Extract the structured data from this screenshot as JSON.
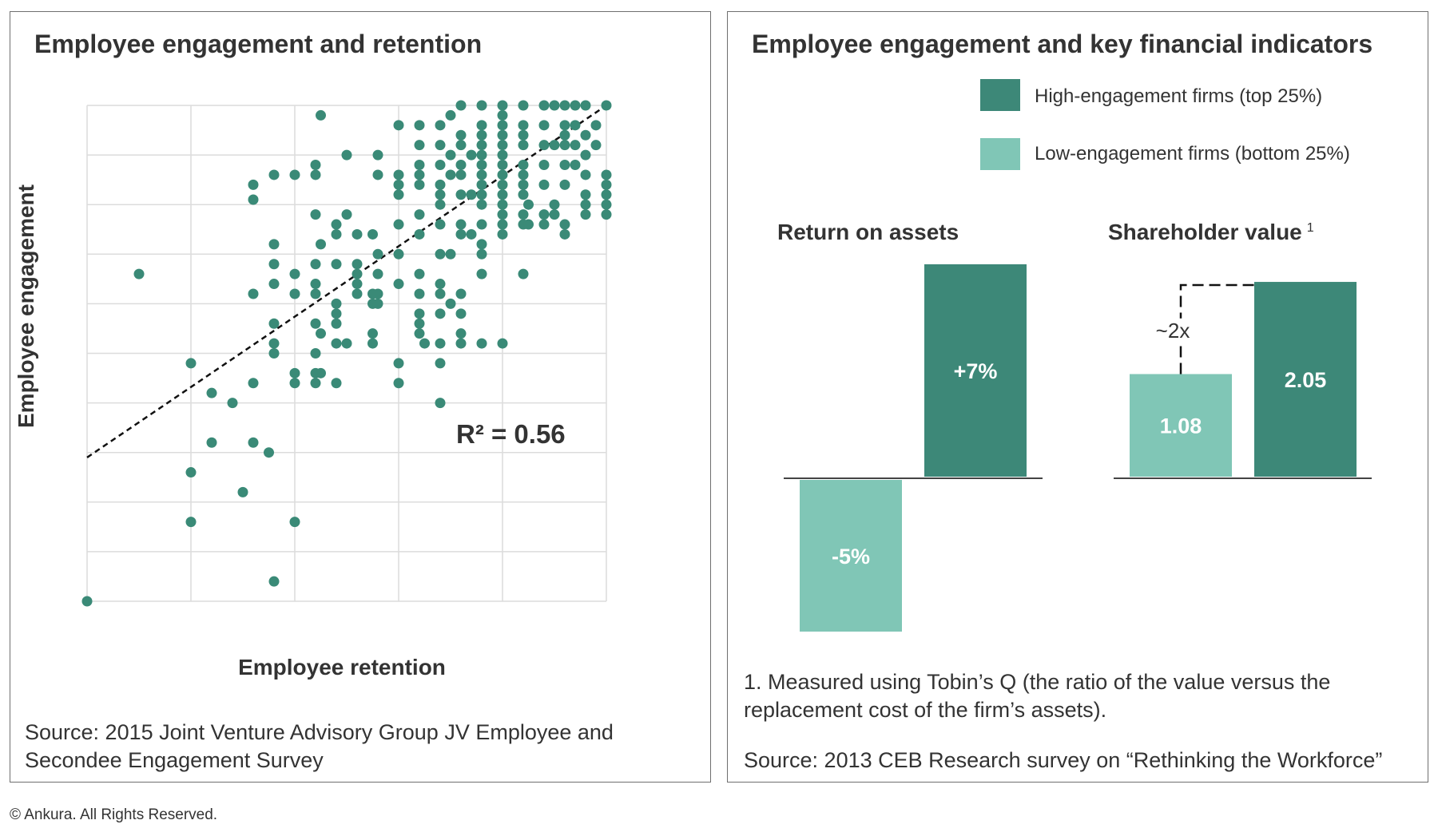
{
  "colors": {
    "high": "#3d8878",
    "low": "#80c6b6",
    "dot": "#3a8a77",
    "grid": "#dcdcdc",
    "text": "#333333"
  },
  "left": {
    "title": "Employee engagement and retention",
    "source": "Source: 2015 Joint Venture Advisory Group JV Employee and Secondee Engagement Survey",
    "r2_label": "R² = 0.56"
  },
  "right": {
    "title": "Employee engagement and key financial indicators",
    "legend_high": "High-engagement firms (top 25%)",
    "legend_low": "Low-engagement firms (bottom 25%)",
    "roa_title": "Return on assets",
    "sv_title": "Shareholder value",
    "sv_footnote_mark": "1",
    "multiplier_label": "~2x",
    "footnote": "1. Measured using Tobin’s Q (the ratio of the value versus the replacement cost of the firm’s assets).",
    "source": "Source: 2013 CEB Research survey on “Rethinking the Workforce”"
  },
  "copyright": "© Ankura. All Rights Reserved.",
  "chart_data": [
    {
      "type": "scatter",
      "title": "Employee engagement and retention",
      "xlabel": "Employee retention",
      "ylabel": "Employee engagement",
      "xlim": [
        0,
        5
      ],
      "ylim": [
        0,
        10
      ],
      "grid": true,
      "annotation": "R² = 0.56",
      "trendline": [
        [
          0,
          2.9
        ],
        [
          5,
          10
        ]
      ],
      "points": [
        [
          0,
          0
        ],
        [
          0.5,
          6.6
        ],
        [
          1,
          4.8
        ],
        [
          1,
          2.6
        ],
        [
          1,
          1.6
        ],
        [
          1.2,
          4.2
        ],
        [
          1.2,
          3.2
        ],
        [
          1.4,
          4
        ],
        [
          1.5,
          2.2
        ],
        [
          1.6,
          3.2
        ],
        [
          1.6,
          4.4
        ],
        [
          1.75,
          3
        ],
        [
          1.8,
          0.4
        ],
        [
          1.8,
          7.2
        ],
        [
          1.8,
          6.8
        ],
        [
          1.8,
          6.4
        ],
        [
          1.6,
          6.2
        ],
        [
          1.6,
          8.1
        ],
        [
          1.6,
          8.4
        ],
        [
          1.8,
          8.6
        ],
        [
          1.8,
          5.6
        ],
        [
          1.8,
          5.2
        ],
        [
          1.8,
          5
        ],
        [
          2,
          6.6
        ],
        [
          2,
          6.2
        ],
        [
          2,
          8.6
        ],
        [
          2,
          4.4
        ],
        [
          2,
          4.6
        ],
        [
          2,
          1.6
        ],
        [
          2.2,
          8.6
        ],
        [
          2.2,
          8.8
        ],
        [
          2.2,
          7.8
        ],
        [
          2.25,
          9.8
        ],
        [
          2.25,
          7.2
        ],
        [
          2.2,
          6.8
        ],
        [
          2.2,
          6.4
        ],
        [
          2.2,
          6.2
        ],
        [
          2.2,
          5.6
        ],
        [
          2.25,
          5.4
        ],
        [
          2.2,
          5
        ],
        [
          2.2,
          4.6
        ],
        [
          2.2,
          4.4
        ],
        [
          2.25,
          4.6
        ],
        [
          2.4,
          7.6
        ],
        [
          2.4,
          7.4
        ],
        [
          2.4,
          6.8
        ],
        [
          2.4,
          6
        ],
        [
          2.4,
          5.6
        ],
        [
          2.4,
          5.2
        ],
        [
          2.4,
          4.4
        ],
        [
          2.4,
          5.8
        ],
        [
          2.5,
          7.8
        ],
        [
          2.5,
          5.2
        ],
        [
          2.5,
          9
        ],
        [
          2.6,
          7.4
        ],
        [
          2.6,
          6.8
        ],
        [
          2.6,
          6.6
        ],
        [
          2.6,
          6.4
        ],
        [
          2.6,
          6.2
        ],
        [
          2.75,
          7.4
        ],
        [
          2.75,
          6.2
        ],
        [
          2.75,
          6
        ],
        [
          2.75,
          5.4
        ],
        [
          2.75,
          5.2
        ],
        [
          2.8,
          8.6
        ],
        [
          2.8,
          9
        ],
        [
          2.8,
          7
        ],
        [
          2.8,
          6.6
        ],
        [
          2.8,
          6.2
        ],
        [
          2.8,
          6
        ],
        [
          3,
          8.2
        ],
        [
          3,
          8.4
        ],
        [
          3,
          8.6
        ],
        [
          3,
          7.6
        ],
        [
          3,
          7
        ],
        [
          3,
          9.6
        ],
        [
          3,
          4.8
        ],
        [
          3,
          4.4
        ],
        [
          3,
          6.4
        ],
        [
          3.2,
          9.6
        ],
        [
          3.2,
          9.2
        ],
        [
          3.2,
          8.8
        ],
        [
          3.2,
          8.6
        ],
        [
          3.2,
          8.4
        ],
        [
          3.2,
          7.8
        ],
        [
          3.2,
          7.4
        ],
        [
          3.2,
          6.6
        ],
        [
          3.2,
          6.2
        ],
        [
          3.2,
          5.6
        ],
        [
          3.2,
          5.8
        ],
        [
          3.2,
          5.4
        ],
        [
          3.25,
          5.2
        ],
        [
          3.4,
          9.6
        ],
        [
          3.4,
          9.2
        ],
        [
          3.4,
          8.8
        ],
        [
          3.4,
          8.4
        ],
        [
          3.4,
          8
        ],
        [
          3.4,
          7.6
        ],
        [
          3.4,
          7
        ],
        [
          3.4,
          6.4
        ],
        [
          3.4,
          6.2
        ],
        [
          3.4,
          5.8
        ],
        [
          3.4,
          5.2
        ],
        [
          3.4,
          4.8
        ],
        [
          3.4,
          4
        ],
        [
          3.4,
          8.2
        ],
        [
          3.5,
          8.6
        ],
        [
          3.5,
          9
        ],
        [
          3.6,
          8.2
        ],
        [
          3.6,
          7.6
        ],
        [
          3.6,
          7.4
        ],
        [
          3.6,
          6.2
        ],
        [
          3.6,
          5.8
        ],
        [
          3.6,
          5.4
        ],
        [
          3.6,
          5.2
        ],
        [
          3.6,
          9.4
        ],
        [
          3.6,
          10
        ],
        [
          3.6,
          9.2
        ],
        [
          3.6,
          8.8
        ],
        [
          3.6,
          8.6
        ],
        [
          3.5,
          7
        ],
        [
          3.5,
          6
        ],
        [
          3.5,
          9.8
        ],
        [
          3.8,
          10
        ],
        [
          3.8,
          9.6
        ],
        [
          3.8,
          9.4
        ],
        [
          3.8,
          9.2
        ],
        [
          3.8,
          9
        ],
        [
          3.8,
          8.8
        ],
        [
          3.8,
          8.6
        ],
        [
          3.8,
          8.4
        ],
        [
          3.8,
          8.2
        ],
        [
          3.8,
          8
        ],
        [
          3.8,
          7.6
        ],
        [
          3.8,
          7.2
        ],
        [
          3.8,
          7
        ],
        [
          3.8,
          6.6
        ],
        [
          3.8,
          5.2
        ],
        [
          3.7,
          9
        ],
        [
          3.7,
          8.2
        ],
        [
          3.7,
          7.4
        ],
        [
          4,
          10
        ],
        [
          4,
          9.8
        ],
        [
          4,
          9.6
        ],
        [
          4,
          9.4
        ],
        [
          4,
          9.2
        ],
        [
          4,
          9
        ],
        [
          4,
          8.8
        ],
        [
          4,
          8.6
        ],
        [
          4,
          8.4
        ],
        [
          4,
          8.2
        ],
        [
          4,
          8
        ],
        [
          4,
          7.8
        ],
        [
          4,
          7.6
        ],
        [
          4,
          7.4
        ],
        [
          4,
          5.2
        ],
        [
          4.2,
          10
        ],
        [
          4.2,
          9.6
        ],
        [
          4.2,
          9.4
        ],
        [
          4.2,
          9.2
        ],
        [
          4.2,
          8.8
        ],
        [
          4.2,
          8.6
        ],
        [
          4.2,
          8.4
        ],
        [
          4.2,
          8.2
        ],
        [
          4.2,
          7.8
        ],
        [
          4.2,
          7.6
        ],
        [
          4.2,
          6.6
        ],
        [
          4.25,
          8
        ],
        [
          4.25,
          7.6
        ],
        [
          4.4,
          10
        ],
        [
          4.4,
          9.6
        ],
        [
          4.4,
          9.2
        ],
        [
          4.4,
          8.8
        ],
        [
          4.4,
          8.4
        ],
        [
          4.4,
          7.8
        ],
        [
          4.4,
          7.6
        ],
        [
          4.5,
          10
        ],
        [
          4.5,
          9.2
        ],
        [
          4.5,
          7.8
        ],
        [
          4.5,
          8
        ],
        [
          4.6,
          10
        ],
        [
          4.6,
          9.6
        ],
        [
          4.6,
          9.4
        ],
        [
          4.6,
          9.2
        ],
        [
          4.6,
          8.8
        ],
        [
          4.6,
          8.4
        ],
        [
          4.6,
          7.6
        ],
        [
          4.6,
          7.4
        ],
        [
          4.7,
          10
        ],
        [
          4.8,
          10
        ],
        [
          4.8,
          9.4
        ],
        [
          4.8,
          9
        ],
        [
          4.8,
          8.6
        ],
        [
          4.8,
          8.2
        ],
        [
          4.8,
          8
        ],
        [
          4.8,
          7.8
        ],
        [
          4.7,
          9.6
        ],
        [
          4.7,
          9.2
        ],
        [
          4.7,
          8.8
        ],
        [
          5,
          10
        ],
        [
          5,
          8.6
        ],
        [
          5,
          8.4
        ],
        [
          5,
          8.2
        ],
        [
          5,
          8
        ],
        [
          5,
          7.8
        ],
        [
          4.9,
          9.6
        ],
        [
          4.9,
          9.2
        ]
      ]
    },
    {
      "type": "bar",
      "title": "Return on assets",
      "categories": [
        "Low-engagement firms (bottom 25%)",
        "High-engagement firms (top 25%)"
      ],
      "values": [
        -5,
        7
      ],
      "labels": [
        "-5%",
        "+7%"
      ]
    },
    {
      "type": "bar",
      "title": "Shareholder value",
      "categories": [
        "Low-engagement firms (bottom 25%)",
        "High-engagement firms (top 25%)"
      ],
      "values": [
        1.08,
        2.05
      ],
      "labels": [
        "1.08",
        "2.05"
      ]
    }
  ]
}
